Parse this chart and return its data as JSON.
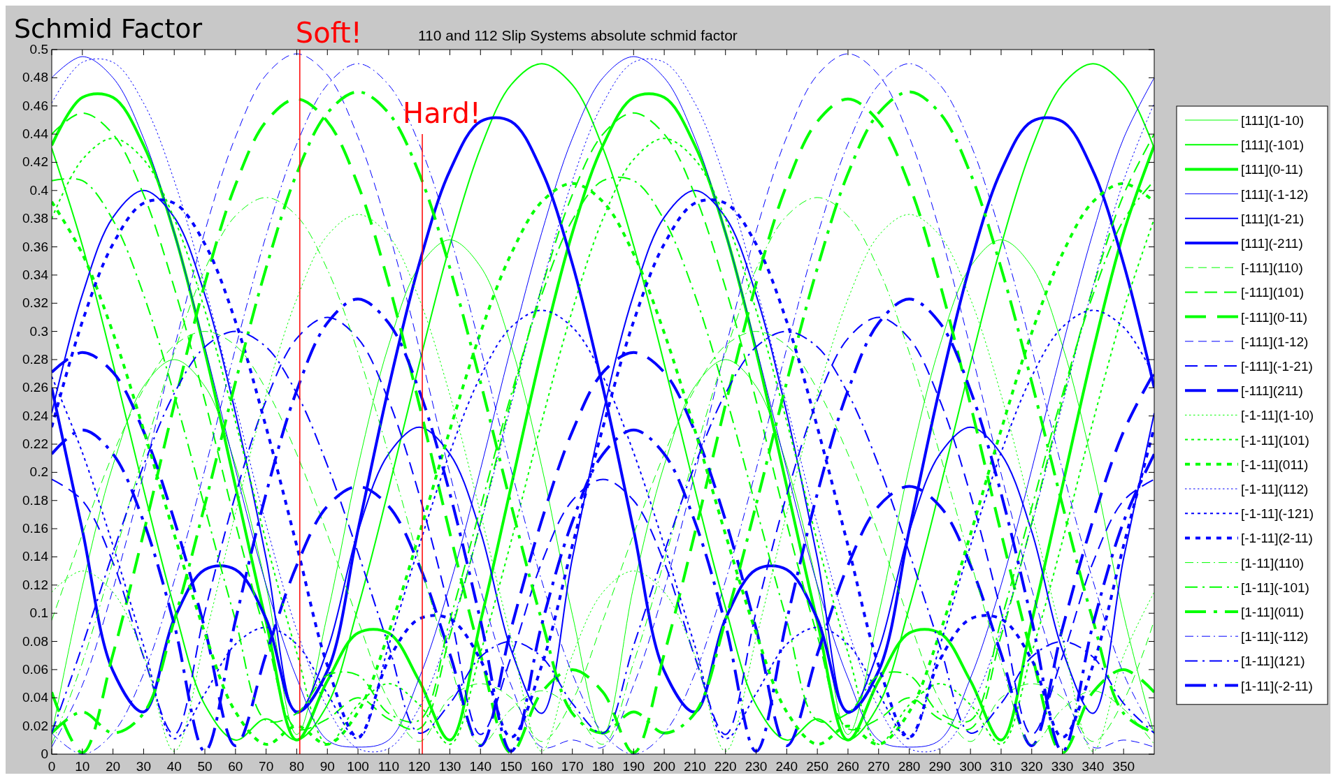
{
  "chart_data": {
    "type": "line",
    "title": "110 and 112 Slip Systems absolute schmid factor",
    "ylabel": "Schmid Factor",
    "x": [
      0,
      10,
      20,
      30,
      40,
      50,
      60,
      70,
      80,
      90,
      100,
      110,
      120,
      130,
      140,
      150,
      160,
      170,
      180,
      190,
      200,
      210,
      220,
      230,
      240,
      250,
      260,
      270,
      280,
      290,
      300,
      310,
      320,
      330,
      340,
      350,
      360
    ],
    "xlim": [
      0,
      360
    ],
    "xticks": [
      0,
      10,
      20,
      30,
      40,
      50,
      60,
      70,
      80,
      90,
      100,
      110,
      120,
      130,
      140,
      150,
      160,
      170,
      180,
      190,
      200,
      210,
      220,
      230,
      240,
      250,
      260,
      270,
      280,
      290,
      300,
      310,
      320,
      330,
      340,
      350
    ],
    "ylim": [
      0,
      0.5
    ],
    "yticks": [
      0,
      0.02,
      0.04,
      0.06,
      0.08,
      0.1,
      0.12,
      0.14,
      0.16,
      0.18,
      0.2,
      0.22,
      0.24,
      0.26,
      0.28,
      0.3,
      0.32,
      0.34,
      0.36,
      0.38,
      0.4,
      0.42,
      0.44,
      0.46,
      0.48,
      0.5
    ],
    "grid": false,
    "legend": "right",
    "ref_lines": [
      {
        "axis": "x",
        "value": 81,
        "label": "Soft!",
        "color": "#ff0000"
      },
      {
        "axis": "x",
        "value": 121,
        "label": "Hard!",
        "color": "#ff0000"
      }
    ],
    "series": [
      {
        "name": "[111](1-10)",
        "color": "#00ff00",
        "line_style": "solid",
        "values": [
          0.014,
          0.119,
          0.205,
          0.261,
          0.28,
          0.261,
          0.205,
          0.119,
          0.014,
          0.099,
          0.204,
          0.29,
          0.346,
          0.365,
          0.346,
          0.29,
          0.204,
          0.099,
          0.014,
          0.119,
          0.205,
          0.261,
          0.28,
          0.261,
          0.205,
          0.119,
          0.014,
          0.099,
          0.204,
          0.29,
          0.346,
          0.365,
          0.346,
          0.29,
          0.204,
          0.099,
          0.014
        ]
      },
      {
        "name": "[111](-101)",
        "color": "#00ff00",
        "line_style": "solid",
        "values": [
          0.43,
          0.361,
          0.277,
          0.188,
          0.104,
          0.035,
          0.01,
          0.025,
          0.01,
          0.035,
          0.104,
          0.188,
          0.277,
          0.361,
          0.43,
          0.475,
          0.49,
          0.475,
          0.43,
          0.361,
          0.277,
          0.188,
          0.104,
          0.035,
          0.01,
          0.025,
          0.01,
          0.035,
          0.104,
          0.188,
          0.277,
          0.361,
          0.43,
          0.475,
          0.49,
          0.475,
          0.43
        ]
      },
      {
        "name": "[111](0-11)",
        "color": "#00ff00",
        "line_style": "solid",
        "values": [
          0.432,
          0.466,
          0.466,
          0.432,
          0.37,
          0.286,
          0.19,
          0.094,
          0.01,
          0.052,
          0.086,
          0.086,
          0.052,
          0.01,
          0.094,
          0.19,
          0.286,
          0.37,
          0.432,
          0.466,
          0.466,
          0.432,
          0.37,
          0.286,
          0.19,
          0.094,
          0.01,
          0.052,
          0.086,
          0.086,
          0.052,
          0.01,
          0.094,
          0.19,
          0.286,
          0.37,
          0.432
        ]
      },
      {
        "name": "[111](-1-12)",
        "color": "#0000ff",
        "line_style": "solid",
        "values": [
          0.48,
          0.495,
          0.48,
          0.437,
          0.37,
          0.289,
          0.202,
          0.12,
          0.054,
          0.01,
          0.005,
          0.01,
          0.054,
          0.12,
          0.202,
          0.289,
          0.37,
          0.437,
          0.48,
          0.495,
          0.48,
          0.437,
          0.37,
          0.289,
          0.202,
          0.12,
          0.054,
          0.01,
          0.005,
          0.01,
          0.054,
          0.12,
          0.202,
          0.289,
          0.37,
          0.437,
          0.48
        ]
      },
      {
        "name": "[111](1-21)",
        "color": "#0000ff",
        "line_style": "solid",
        "values": [
          0.242,
          0.326,
          0.381,
          0.4,
          0.381,
          0.326,
          0.242,
          0.139,
          0.029,
          0.074,
          0.158,
          0.213,
          0.232,
          0.213,
          0.158,
          0.074,
          0.029,
          0.139,
          0.242,
          0.326,
          0.381,
          0.4,
          0.381,
          0.326,
          0.242,
          0.139,
          0.029,
          0.074,
          0.158,
          0.213,
          0.232,
          0.213,
          0.158,
          0.074,
          0.029,
          0.139,
          0.242
        ]
      },
      {
        "name": "[111](-211)",
        "color": "#0000ff",
        "line_style": "solid",
        "values": [
          0.26,
          0.159,
          0.059,
          0.03,
          0.096,
          0.131,
          0.131,
          0.096,
          0.03,
          0.059,
          0.159,
          0.26,
          0.348,
          0.414,
          0.449,
          0.449,
          0.414,
          0.348,
          0.26,
          0.159,
          0.059,
          0.03,
          0.096,
          0.131,
          0.131,
          0.096,
          0.03,
          0.059,
          0.159,
          0.26,
          0.348,
          0.414,
          0.449,
          0.449,
          0.414,
          0.348,
          0.26
        ]
      },
      {
        "name": "[-111](110)",
        "color": "#00ff00",
        "line_style": "dashed",
        "values": [
          0.095,
          0.156,
          0.213,
          0.259,
          0.29,
          0.3,
          0.29,
          0.259,
          0.213,
          0.156,
          0.095,
          0.038,
          0.009,
          0.04,
          0.05,
          0.04,
          0.009,
          0.038,
          0.095,
          0.156,
          0.213,
          0.259,
          0.29,
          0.3,
          0.29,
          0.259,
          0.213,
          0.156,
          0.095,
          0.038,
          0.009,
          0.04,
          0.05,
          0.04,
          0.009,
          0.038,
          0.095
        ]
      },
      {
        "name": "[-111](101)",
        "color": "#00ff00",
        "line_style": "dashed",
        "values": [
          0.44,
          0.455,
          0.44,
          0.397,
          0.331,
          0.251,
          0.164,
          0.084,
          0.018,
          0.025,
          0.04,
          0.025,
          0.018,
          0.084,
          0.164,
          0.251,
          0.331,
          0.397,
          0.44,
          0.455,
          0.44,
          0.397,
          0.331,
          0.251,
          0.164,
          0.084,
          0.018,
          0.025,
          0.04,
          0.025,
          0.018,
          0.084,
          0.164,
          0.251,
          0.331,
          0.397,
          0.44
        ]
      },
      {
        "name": "[-111](0-11)",
        "color": "#00ff00",
        "line_style": "dashed",
        "values": [
          0.044,
          0.001,
          0.071,
          0.157,
          0.248,
          0.334,
          0.404,
          0.449,
          0.465,
          0.449,
          0.404,
          0.334,
          0.248,
          0.157,
          0.071,
          0.001,
          0.044,
          0.06,
          0.044,
          0.001,
          0.071,
          0.157,
          0.248,
          0.334,
          0.404,
          0.449,
          0.465,
          0.449,
          0.404,
          0.334,
          0.248,
          0.157,
          0.071,
          0.001,
          0.044,
          0.06,
          0.044
        ]
      },
      {
        "name": "[-111](1-12)",
        "color": "#0000ff",
        "line_style": "dashed",
        "values": [
          0.005,
          0.049,
          0.117,
          0.199,
          0.288,
          0.371,
          0.438,
          0.482,
          0.497,
          0.482,
          0.438,
          0.371,
          0.288,
          0.199,
          0.117,
          0.049,
          0.005,
          0.01,
          0.005,
          0.049,
          0.117,
          0.199,
          0.288,
          0.371,
          0.438,
          0.482,
          0.497,
          0.482,
          0.438,
          0.371,
          0.288,
          0.199,
          0.117,
          0.049,
          0.005,
          0.01,
          0.005
        ]
      },
      {
        "name": "[-111](-1-21)",
        "color": "#0000ff",
        "line_style": "dashed",
        "values": [
          0.195,
          0.18,
          0.136,
          0.069,
          0.014,
          0.101,
          0.184,
          0.251,
          0.295,
          0.31,
          0.295,
          0.251,
          0.184,
          0.101,
          0.014,
          0.069,
          0.136,
          0.18,
          0.195,
          0.18,
          0.136,
          0.069,
          0.014,
          0.101,
          0.184,
          0.251,
          0.295,
          0.31,
          0.295,
          0.251,
          0.184,
          0.101,
          0.014,
          0.069,
          0.136,
          0.18,
          0.195
        ]
      },
      {
        "name": "[-111](211)",
        "color": "#0000ff",
        "line_style": "dashed",
        "values": [
          0.271,
          0.285,
          0.271,
          0.229,
          0.166,
          0.089,
          0.006,
          0.071,
          0.134,
          0.176,
          0.19,
          0.176,
          0.134,
          0.071,
          0.006,
          0.089,
          0.166,
          0.229,
          0.271,
          0.285,
          0.271,
          0.229,
          0.166,
          0.089,
          0.006,
          0.071,
          0.134,
          0.176,
          0.19,
          0.176,
          0.134,
          0.071,
          0.006,
          0.089,
          0.166,
          0.229,
          0.271
        ]
      },
      {
        "name": "[-1-11](1-10)",
        "color": "#00ff00",
        "line_style": "dotted",
        "values": [
          0.115,
          0.13,
          0.115,
          0.07,
          0.002,
          0.082,
          0.171,
          0.255,
          0.323,
          0.368,
          0.383,
          0.368,
          0.323,
          0.255,
          0.171,
          0.082,
          0.002,
          0.07,
          0.115,
          0.13,
          0.115,
          0.07,
          0.002,
          0.082,
          0.171,
          0.255,
          0.323,
          0.368,
          0.383,
          0.368,
          0.323,
          0.255,
          0.171,
          0.082,
          0.002,
          0.07,
          0.115
        ]
      },
      {
        "name": "[-1-11](101)",
        "color": "#00ff00",
        "line_style": "dotted",
        "values": [
          0.38,
          0.422,
          0.437,
          0.422,
          0.38,
          0.315,
          0.236,
          0.151,
          0.072,
          0.007,
          0.035,
          0.05,
          0.035,
          0.007,
          0.072,
          0.151,
          0.236,
          0.315,
          0.38,
          0.422,
          0.437,
          0.422,
          0.38,
          0.315,
          0.236,
          0.151,
          0.072,
          0.007,
          0.035,
          0.05,
          0.035,
          0.007,
          0.072,
          0.151,
          0.236,
          0.315,
          0.38
        ]
      },
      {
        "name": "[-1-11](011)",
        "color": "#00ff00",
        "line_style": "dotted",
        "values": [
          0.392,
          0.355,
          0.299,
          0.23,
          0.156,
          0.086,
          0.03,
          0.007,
          0.02,
          0.007,
          0.03,
          0.086,
          0.156,
          0.23,
          0.299,
          0.355,
          0.392,
          0.405,
          0.392,
          0.355,
          0.299,
          0.23,
          0.156,
          0.086,
          0.03,
          0.007,
          0.02,
          0.007,
          0.03,
          0.086,
          0.156,
          0.23,
          0.299,
          0.355,
          0.392,
          0.405,
          0.392
        ]
      },
      {
        "name": "[-1-11](112)",
        "color": "#0000ff",
        "line_style": "dotted",
        "values": [
          0.462,
          0.491,
          0.491,
          0.462,
          0.407,
          0.332,
          0.248,
          0.163,
          0.088,
          0.033,
          0.004,
          0.004,
          0.033,
          0.088,
          0.163,
          0.248,
          0.332,
          0.407,
          0.462,
          0.491,
          0.491,
          0.462,
          0.407,
          0.332,
          0.248,
          0.163,
          0.088,
          0.033,
          0.004,
          0.004,
          0.033,
          0.088,
          0.163,
          0.248,
          0.332,
          0.407,
          0.462
        ]
      },
      {
        "name": "[-1-11](-121)",
        "color": "#0000ff",
        "line_style": "dotted",
        "values": [
          0.268,
          0.214,
          0.148,
          0.077,
          0.011,
          0.043,
          0.078,
          0.09,
          0.078,
          0.043,
          0.011,
          0.077,
          0.148,
          0.214,
          0.268,
          0.303,
          0.315,
          0.303,
          0.268,
          0.214,
          0.148,
          0.077,
          0.011,
          0.043,
          0.078,
          0.09,
          0.078,
          0.043,
          0.011,
          0.077,
          0.148,
          0.214,
          0.268,
          0.303,
          0.315,
          0.303,
          0.268
        ]
      },
      {
        "name": "[-1-11](2-11)",
        "color": "#0000ff",
        "line_style": "dotted",
        "values": [
          0.232,
          0.307,
          0.362,
          0.391,
          0.391,
          0.362,
          0.307,
          0.232,
          0.148,
          0.063,
          0.012,
          0.067,
          0.096,
          0.096,
          0.067,
          0.012,
          0.063,
          0.148,
          0.232,
          0.307,
          0.362,
          0.391,
          0.391,
          0.362,
          0.307,
          0.232,
          0.148,
          0.063,
          0.012,
          0.067,
          0.096,
          0.096,
          0.067,
          0.012,
          0.063,
          0.148,
          0.232
        ]
      },
      {
        "name": "[1-11](110)",
        "color": "#00ff00",
        "line_style": "dashdot",
        "values": [
          0.007,
          0.065,
          0.137,
          0.213,
          0.285,
          0.344,
          0.382,
          0.395,
          0.382,
          0.344,
          0.285,
          0.213,
          0.137,
          0.065,
          0.007,
          0.032,
          0.045,
          0.032,
          0.007,
          0.065,
          0.137,
          0.213,
          0.285,
          0.344,
          0.382,
          0.395,
          0.382,
          0.344,
          0.285,
          0.213,
          0.137,
          0.065,
          0.007,
          0.032,
          0.045,
          0.032,
          0.007
        ]
      },
      {
        "name": "[1-11](-101)",
        "color": "#00ff00",
        "line_style": "dashdot",
        "values": [
          0.407,
          0.407,
          0.379,
          0.326,
          0.255,
          0.175,
          0.095,
          0.024,
          0.029,
          0.056,
          0.056,
          0.029,
          0.024,
          0.095,
          0.175,
          0.255,
          0.326,
          0.379,
          0.407,
          0.407,
          0.379,
          0.326,
          0.255,
          0.175,
          0.095,
          0.024,
          0.029,
          0.056,
          0.056,
          0.029,
          0.024,
          0.095,
          0.175,
          0.255,
          0.326,
          0.379,
          0.407
        ]
      },
      {
        "name": "[1-11](011)",
        "color": "#00ff00",
        "line_style": "dashdot",
        "values": [
          0.015,
          0.03,
          0.015,
          0.029,
          0.095,
          0.177,
          0.264,
          0.345,
          0.412,
          0.455,
          0.47,
          0.455,
          0.412,
          0.345,
          0.264,
          0.177,
          0.095,
          0.029,
          0.015,
          0.03,
          0.015,
          0.029,
          0.095,
          0.177,
          0.264,
          0.345,
          0.412,
          0.455,
          0.47,
          0.455,
          0.412,
          0.345,
          0.264,
          0.177,
          0.095,
          0.029,
          0.015
        ]
      },
      {
        "name": "[1-11](-112)",
        "color": "#0000ff",
        "line_style": "dashdot",
        "values": [
          0.015,
          0,
          0.015,
          0.057,
          0.123,
          0.202,
          0.288,
          0.368,
          0.433,
          0.475,
          0.49,
          0.475,
          0.433,
          0.368,
          0.288,
          0.202,
          0.123,
          0.057,
          0.015,
          0,
          0.015,
          0.057,
          0.123,
          0.202,
          0.288,
          0.368,
          0.433,
          0.475,
          0.49,
          0.475,
          0.433,
          0.368,
          0.288,
          0.202,
          0.123,
          0.057,
          0.015
        ]
      },
      {
        "name": "[1-11](121)",
        "color": "#0000ff",
        "line_style": "dashdot",
        "values": [
          0.015,
          0.077,
          0.143,
          0.205,
          0.256,
          0.289,
          0.3,
          0.289,
          0.256,
          0.205,
          0.143,
          0.077,
          0.015,
          0.036,
          0.069,
          0.08,
          0.069,
          0.036,
          0.015,
          0.077,
          0.143,
          0.205,
          0.256,
          0.289,
          0.3,
          0.289,
          0.256,
          0.205,
          0.143,
          0.077,
          0.015,
          0.036,
          0.069,
          0.08,
          0.069,
          0.036,
          0.015
        ]
      },
      {
        "name": "[1-11](-2-11)",
        "color": "#0000ff",
        "line_style": "dashdot",
        "values": [
          0.213,
          0.23,
          0.213,
          0.165,
          0.092,
          0.002,
          0.095,
          0.185,
          0.258,
          0.306,
          0.323,
          0.306,
          0.258,
          0.185,
          0.095,
          0.002,
          0.092,
          0.165,
          0.213,
          0.23,
          0.213,
          0.165,
          0.092,
          0.002,
          0.095,
          0.185,
          0.258,
          0.306,
          0.323,
          0.306,
          0.258,
          0.185,
          0.095,
          0.002,
          0.092,
          0.165,
          0.213
        ]
      }
    ]
  }
}
